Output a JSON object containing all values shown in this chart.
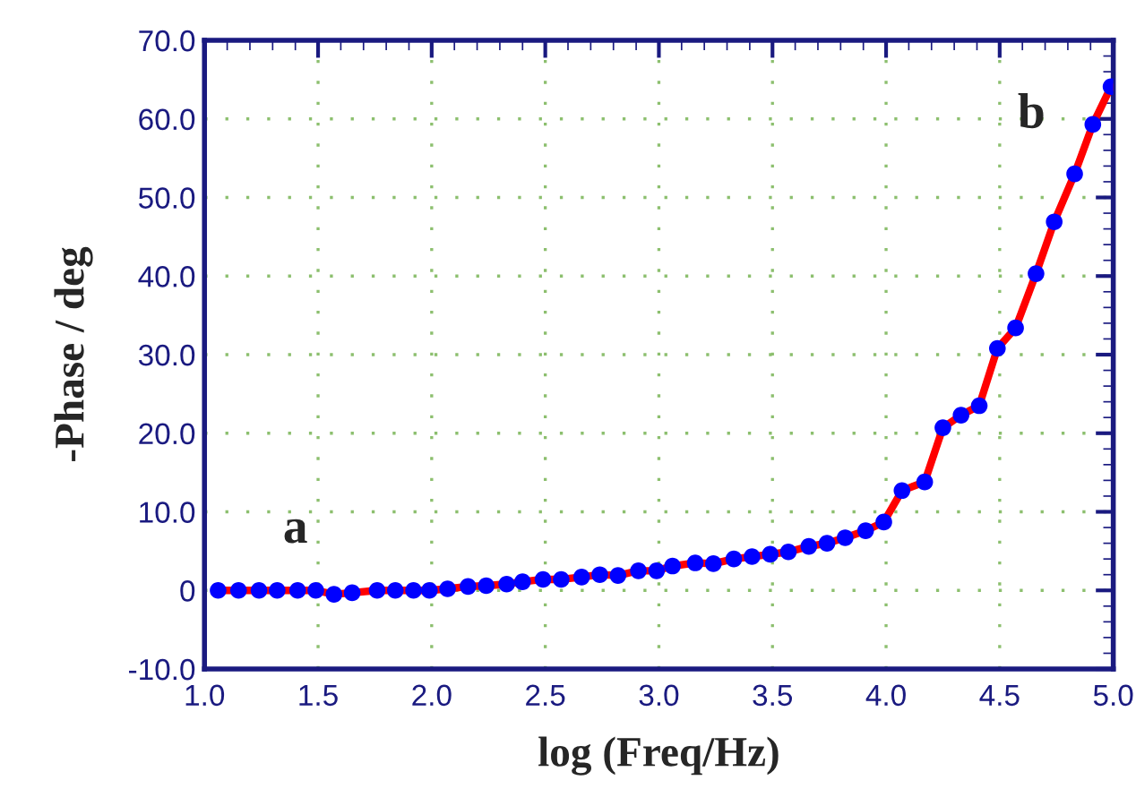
{
  "chart_data": {
    "type": "line",
    "xlabel": "log (Freq/Hz)",
    "ylabel": "-Phase / deg",
    "series": [
      {
        "color": "#ff0000",
        "marker": "none",
        "x": [
          1.06,
          1.15,
          1.24,
          1.32,
          1.41,
          1.49,
          1.57,
          1.65,
          1.76,
          1.84,
          1.92,
          1.99,
          2.07,
          2.16,
          2.24,
          2.33,
          2.4,
          2.49,
          2.57,
          2.66,
          2.74,
          2.82,
          2.91,
          2.99,
          3.06,
          3.16,
          3.24,
          3.33,
          3.41,
          3.49,
          3.57,
          3.66,
          3.74,
          3.82,
          3.91,
          3.99,
          4.07,
          4.17,
          4.25,
          4.33,
          4.41,
          4.49,
          4.57,
          4.66,
          4.74,
          4.83,
          4.91,
          4.99
        ],
        "values": [
          0,
          0,
          0,
          0,
          0,
          0,
          -0.5,
          -0.3,
          0,
          0,
          0,
          0,
          0.2,
          0.5,
          0.6,
          0.8,
          1.1,
          1.4,
          1.4,
          1.7,
          2.0,
          1.9,
          2.5,
          2.5,
          3.1,
          3.5,
          3.4,
          4.0,
          4.3,
          4.6,
          4.9,
          5.6,
          6.0,
          6.7,
          7.6,
          8.7,
          12.7,
          13.8,
          20.7,
          22.3,
          23.5,
          30.8,
          33.4,
          40.3,
          46.9,
          53.0,
          59.3,
          64.1
        ]
      },
      {
        "color": "#0000ff",
        "type": "scatter",
        "x": [
          1.06,
          1.15,
          1.24,
          1.32,
          1.41,
          1.49,
          1.57,
          1.65,
          1.76,
          1.84,
          1.92,
          1.99,
          2.07,
          2.16,
          2.24,
          2.33,
          2.4,
          2.49,
          2.57,
          2.66,
          2.74,
          2.82,
          2.91,
          2.99,
          3.06,
          3.16,
          3.24,
          3.33,
          3.41,
          3.49,
          3.57,
          3.66,
          3.74,
          3.82,
          3.91,
          3.99,
          4.07,
          4.17,
          4.25,
          4.33,
          4.41,
          4.49,
          4.57,
          4.66,
          4.74,
          4.83,
          4.91,
          4.99
        ],
        "values": [
          0,
          0,
          0,
          0,
          0,
          0,
          -0.5,
          -0.3,
          0,
          0,
          0,
          0,
          0.2,
          0.5,
          0.6,
          0.8,
          1.1,
          1.4,
          1.4,
          1.7,
          2.0,
          1.9,
          2.5,
          2.5,
          3.1,
          3.5,
          3.4,
          4.0,
          4.3,
          4.6,
          4.9,
          5.6,
          6.0,
          6.7,
          7.6,
          8.7,
          12.7,
          13.8,
          20.7,
          22.3,
          23.5,
          30.8,
          33.4,
          40.3,
          46.9,
          53.0,
          59.3,
          64.1
        ]
      }
    ],
    "marker": "circle",
    "line_style": "solid",
    "grid": true,
    "xlim": [
      1.0,
      5.0
    ],
    "xticks": [
      {
        "value": 1.0,
        "label": "1.0"
      },
      {
        "value": 1.5,
        "label": "1.5"
      },
      {
        "value": 2.0,
        "label": "2.0"
      },
      {
        "value": 2.5,
        "label": "2.5"
      },
      {
        "value": 3.0,
        "label": "3.0"
      },
      {
        "value": 3.5,
        "label": "3.5"
      },
      {
        "value": 4.0,
        "label": "4.0"
      },
      {
        "value": 4.5,
        "label": "4.5"
      },
      {
        "value": 5.0,
        "label": "5.0"
      }
    ],
    "ylim": [
      -10,
      70
    ],
    "yticks": [
      {
        "value": -10,
        "label": "-10.0"
      },
      0,
      {
        "value": 10,
        "label": "10.0"
      },
      {
        "value": 20,
        "label": "20.0"
      },
      {
        "value": 30,
        "label": "30.0"
      },
      {
        "value": 40,
        "label": "40.0"
      },
      {
        "value": 50,
        "label": "50.0"
      },
      {
        "value": 60,
        "label": "60.0"
      },
      {
        "value": 70,
        "label": "70.0"
      }
    ],
    "annotations": [
      "a",
      "b"
    ]
  }
}
